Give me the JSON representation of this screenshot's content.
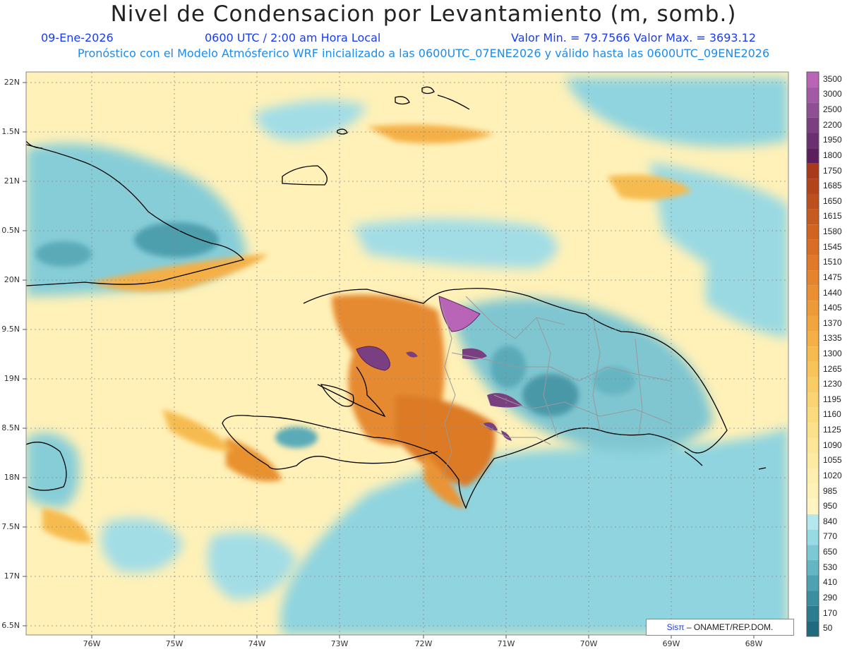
{
  "header": {
    "title": "Nivel de Condensacion por Levantamiento (m, somb.)",
    "date": "09-Ene-2026",
    "time": "0600 UTC / 2:00 am Hora Local",
    "min_max": "Valor Min. = 79.7566  Valor Max. = 3693.12",
    "description": "Pronóstico con el Modelo Atmósferico WRF inicializado a las 0600UTC_07ENE2026 y válido hasta las  0600UTC_09ENE2026"
  },
  "axes": {
    "lat_labels": [
      "22N",
      "1.5N",
      "21N",
      "0.5N",
      "20N",
      "9.5N",
      "19N",
      "8.5N",
      "18N",
      "7.5N",
      "17N",
      "6.5N"
    ],
    "lon_labels": [
      "76W",
      "75W",
      "74W",
      "73W",
      "72W",
      "71W",
      "70W",
      "69W",
      "68W"
    ]
  },
  "colorbar": {
    "levels": [
      "3500",
      "3000",
      "2500",
      "2200",
      "1950",
      "1800",
      "1750",
      "1685",
      "1650",
      "1615",
      "1580",
      "1545",
      "1510",
      "1475",
      "1440",
      "1405",
      "1370",
      "1335",
      "1300",
      "1265",
      "1230",
      "1195",
      "1160",
      "1125",
      "1090",
      "1055",
      "1020",
      "985",
      "950",
      "840",
      "770",
      "650",
      "530",
      "410",
      "290",
      "170",
      "50"
    ],
    "colors": [
      "#b865b8",
      "#a35aa6",
      "#8e4f93",
      "#7a3f80",
      "#6a2f6e",
      "#5a1f5c",
      "#a63a1a",
      "#b2441c",
      "#bd4e1e",
      "#c75a20",
      "#d06423",
      "#d86e26",
      "#e07a2a",
      "#e5842e",
      "#ea8f33",
      "#ee9a38",
      "#f1a53f",
      "#f4b047",
      "#f6bb50",
      "#f8c45a",
      "#f9cc66",
      "#fad473",
      "#fbdb80",
      "#fce18c",
      "#fde698",
      "#feeba3",
      "#feefae",
      "#fff2b8",
      "#fff5c2",
      "#b4e8ee",
      "#96dae3",
      "#7ec8d3",
      "#66b5c2",
      "#4ea1b0",
      "#3b8e9e",
      "#2c7c8d",
      "#1f6b7d"
    ]
  },
  "credit": {
    "logo": "Sisπ",
    "text": "– ONAMET/REP.DOM."
  },
  "colors": {
    "land_outline": "#000000",
    "province_lines": "#999999",
    "ocean_base": "#fff1b8",
    "teal": "#8fd4df",
    "orange": "#e98a2f",
    "purple": "#7a3f80"
  }
}
